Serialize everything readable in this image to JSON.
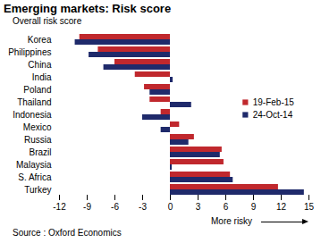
{
  "chart_data": {
    "type": "bar",
    "orientation": "horizontal",
    "title": "Emerging markets: Risk score",
    "subtitle": "Overall risk score",
    "caption": "Source : Oxford Economics",
    "annotation": "More risky",
    "categories": [
      "Korea",
      "Philippines",
      "China",
      "India",
      "Poland",
      "Thailand",
      "Indonesia",
      "Mexico",
      "Russia",
      "Brazil",
      "Malaysia",
      "S. Africa",
      "Turkey"
    ],
    "series": [
      {
        "name": "19-Feb-15",
        "color": "#c0282d",
        "values": [
          -9.8,
          -7.8,
          -6.0,
          -3.8,
          -2.8,
          -2.2,
          -1.0,
          1.0,
          2.6,
          5.6,
          5.8,
          6.5,
          11.7
        ]
      },
      {
        "name": "24-Oct-14",
        "color": "#1f2a6b",
        "values": [
          -10.3,
          -8.8,
          -7.2,
          0.3,
          -2.2,
          2.3,
          -3.0,
          -1.0,
          2.0,
          5.4,
          0.2,
          6.8,
          14.5
        ]
      }
    ],
    "xlim": [
      -12,
      15
    ],
    "xticks": [
      -12,
      -9,
      -6,
      -3,
      0,
      3,
      6,
      9,
      12,
      15
    ],
    "legend": "right",
    "grid": false
  }
}
